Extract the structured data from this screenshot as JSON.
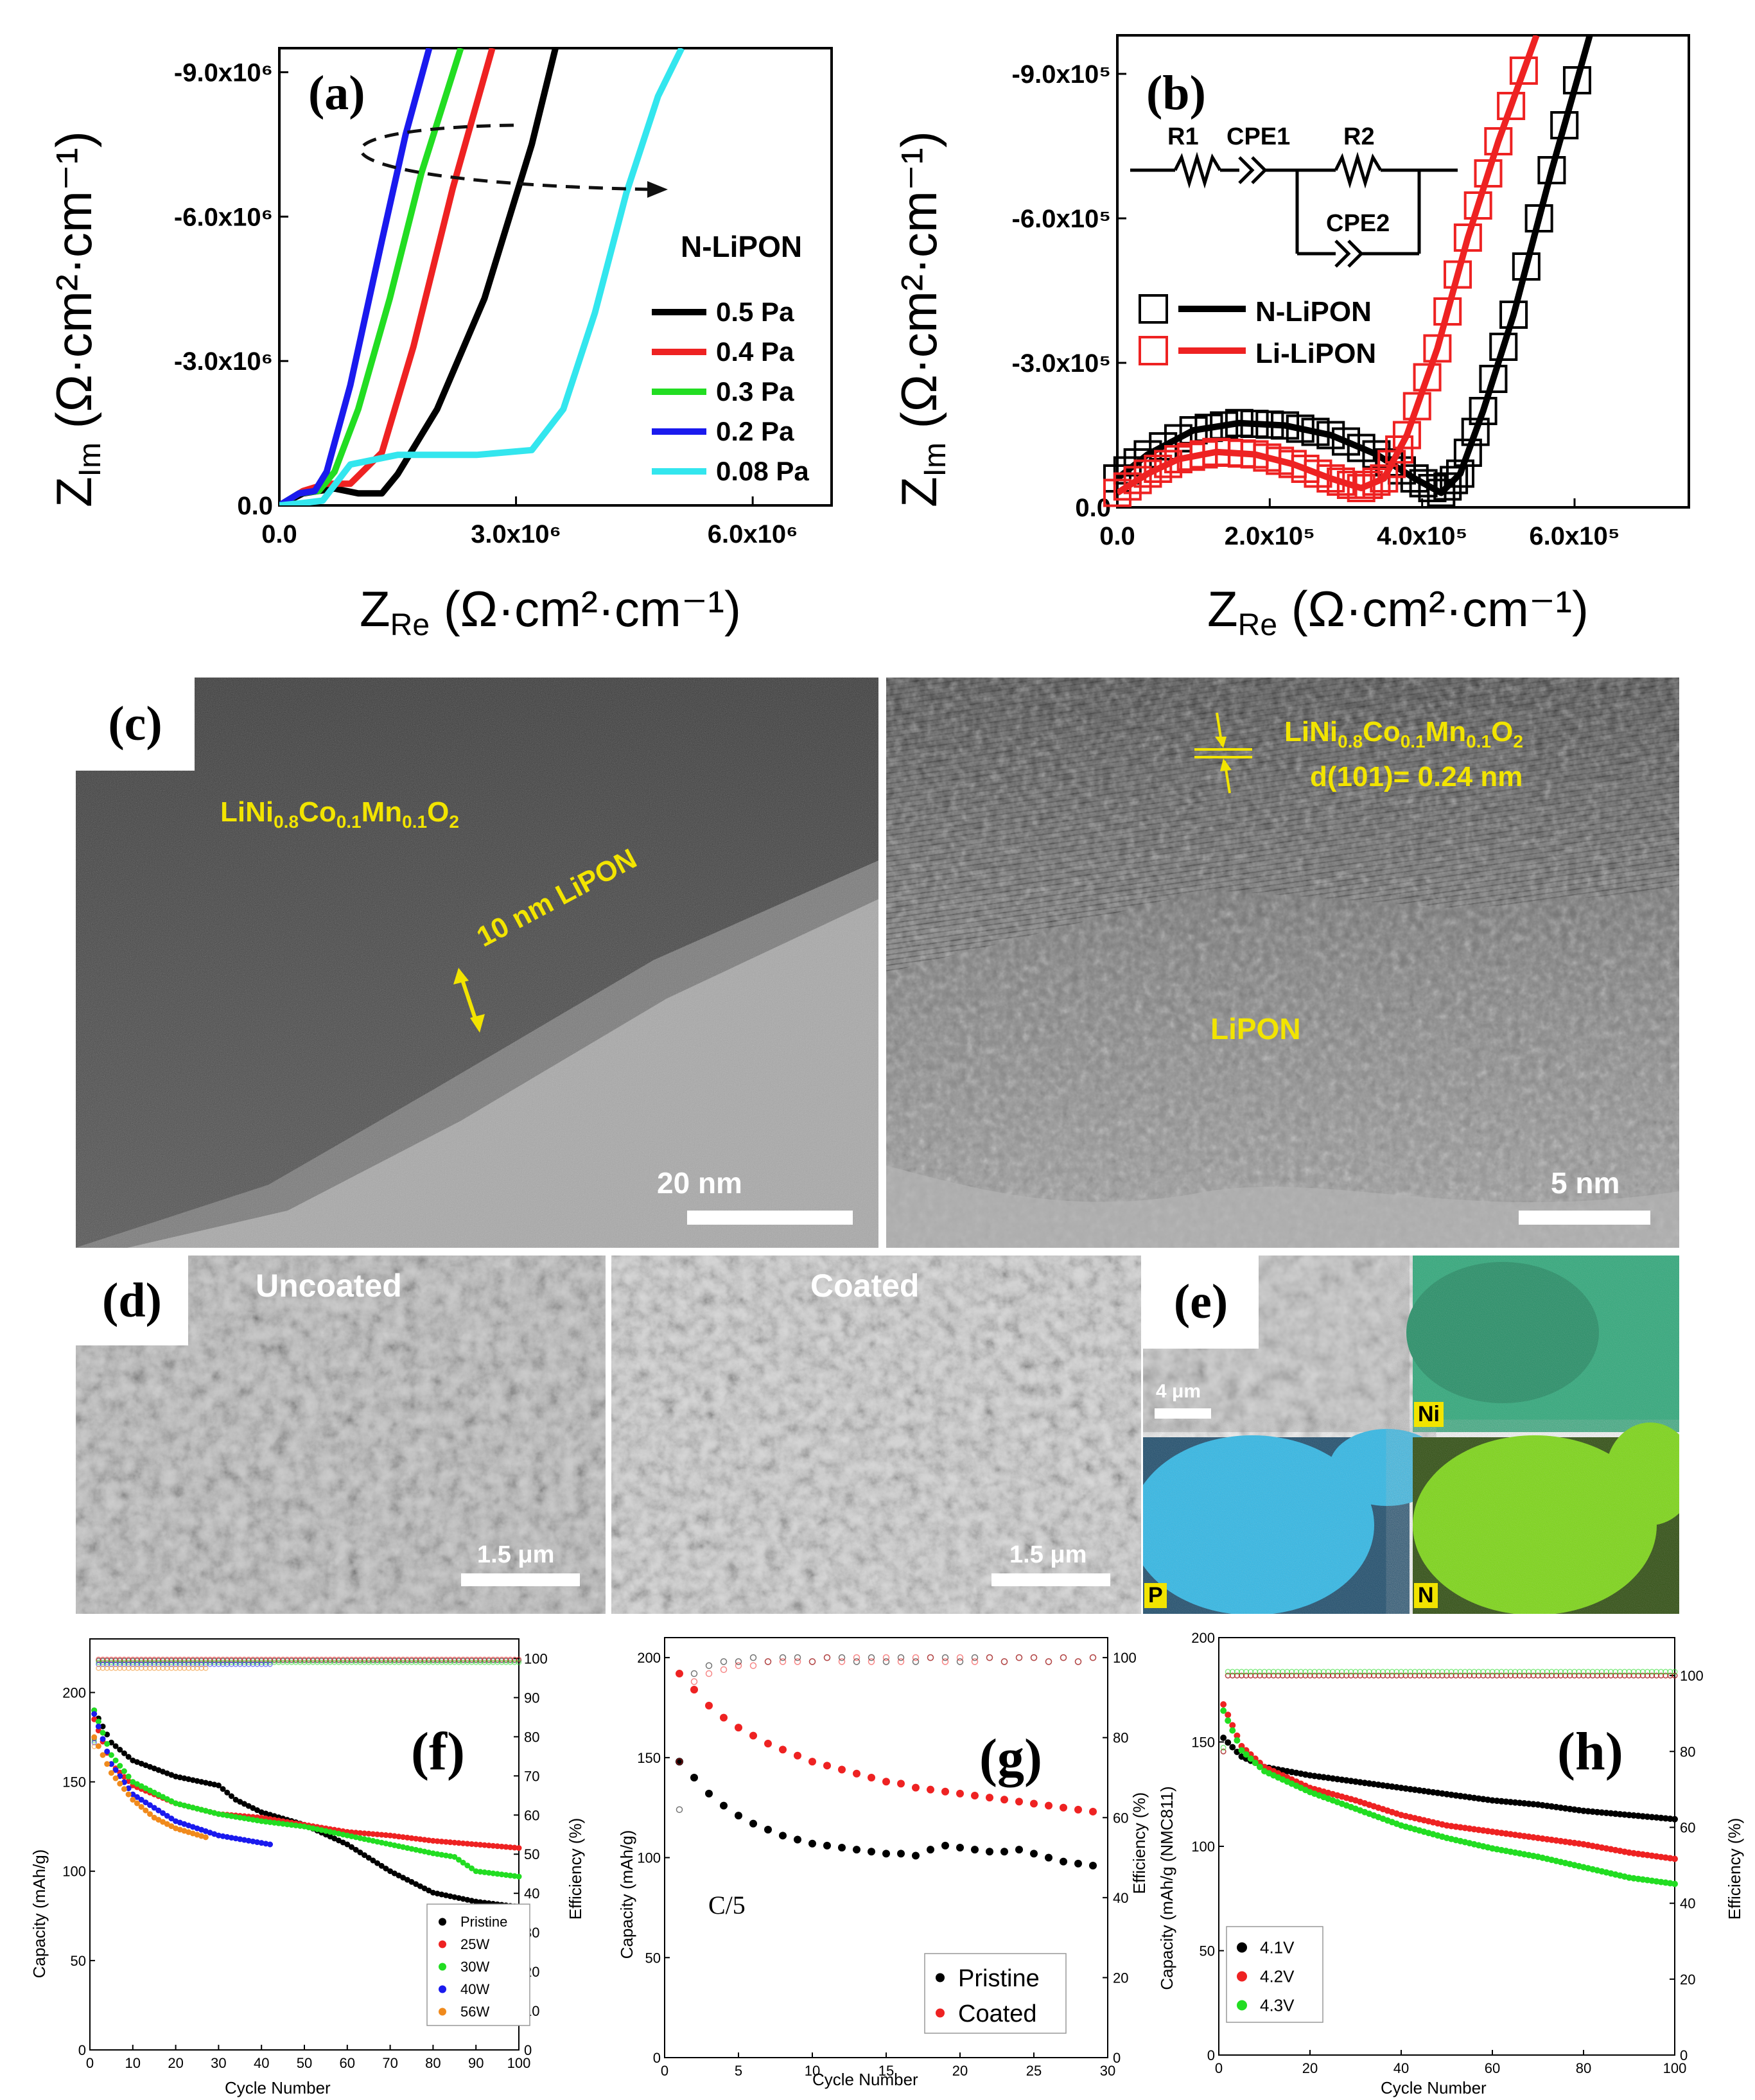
{
  "colors": {
    "black": "#000000",
    "red": "#ee2222",
    "green": "#22dd22",
    "blue": "#1a1aee",
    "cyan": "#33e6ee",
    "orange": "#f08a1c",
    "yellow": "#f2e400",
    "ni_map": "#2aa878",
    "p_map": "#2bb8e8",
    "n_map": "#7ad80e"
  },
  "panel_a": {
    "label": "(a)",
    "legend_title": "N-LiPON",
    "xlabel": "Z",
    "xlabel_sub": "Re",
    "unit": "(Ω·cm²·cm⁻¹)",
    "ylabel": "Z",
    "ylabel_sub": "Im",
    "chart_data": {
      "type": "line",
      "title": "",
      "xlim": [
        0,
        7000000
      ],
      "ylim": [
        0,
        9500000
      ],
      "x_ticks": [
        0,
        3000000,
        6000000
      ],
      "x_tick_labels": [
        "0.0",
        "3.0x10⁶",
        "6.0x10⁶"
      ],
      "y_ticks": [
        0,
        3000000,
        6000000,
        9000000
      ],
      "y_tick_labels": [
        "0.0",
        "-3.0x10⁶",
        "-6.0x10⁶",
        "-9.0x10⁶"
      ],
      "series": [
        {
          "name": "0.5 Pa",
          "color": "#000000",
          "x": [
            0,
            300000,
            700000,
            1000000,
            1300000,
            1500000,
            2000000,
            2600000,
            3200000,
            3500000
          ],
          "y": [
            0,
            250000,
            350000,
            250000,
            250000,
            650000,
            2000000,
            4300000,
            7500000,
            9500000
          ]
        },
        {
          "name": "0.4 Pa",
          "color": "#ee2222",
          "x": [
            0,
            300000,
            600000,
            900000,
            1300000,
            1700000,
            2200000,
            2700000
          ],
          "y": [
            0,
            300000,
            450000,
            450000,
            1100000,
            3300000,
            6600000,
            9500000
          ]
        },
        {
          "name": "0.3 Pa",
          "color": "#22dd22",
          "x": [
            0,
            250000,
            500000,
            700000,
            1000000,
            1400000,
            1800000,
            2300000
          ],
          "y": [
            0,
            250000,
            300000,
            700000,
            2000000,
            4300000,
            6900000,
            9500000
          ]
        },
        {
          "name": "0.2 Pa",
          "color": "#1a1aee",
          "x": [
            0,
            250000,
            450000,
            600000,
            900000,
            1300000,
            1600000,
            1900000
          ],
          "y": [
            0,
            250000,
            300000,
            700000,
            2500000,
            5500000,
            7700000,
            9500000
          ]
        },
        {
          "name": "0.08 Pa",
          "color": "#33e6ee",
          "x": [
            0,
            300000,
            550000,
            900000,
            1500000,
            2500000,
            3200000,
            3600000,
            4000000,
            4400000,
            4800000,
            5100000
          ],
          "y": [
            0,
            50000,
            100000,
            850000,
            1050000,
            1050000,
            1150000,
            2000000,
            4000000,
            6500000,
            8500000,
            9500000
          ]
        }
      ]
    }
  },
  "panel_b": {
    "label": "(b)",
    "circuit": {
      "r1": "R1",
      "cpe1": "CPE1",
      "r2": "R2",
      "cpe2": "CPE2"
    },
    "xlabel": "Z",
    "xlabel_sub": "Re",
    "unit": "(Ω·cm²·cm⁻¹)",
    "ylabel": "Z",
    "ylabel_sub": "Im",
    "chart_data": {
      "type": "scatter",
      "title": "",
      "xlim": [
        0,
        750000
      ],
      "ylim": [
        0,
        980000
      ],
      "x_ticks": [
        0,
        200000,
        400000,
        600000
      ],
      "x_tick_labels": [
        "0.0",
        "2.0x10⁵",
        "4.0x10⁵",
        "6.0x10⁵"
      ],
      "y_ticks": [
        0,
        300000,
        600000,
        900000
      ],
      "y_tick_labels": [
        "0.0",
        "-3.0x10⁵",
        "-6.0x10⁵",
        "-9.0x10⁵"
      ],
      "series": [
        {
          "name": "N-LiPON",
          "color": "#000000",
          "marker": "open-square",
          "fit_x": [
            0,
            40000,
            100000,
            160000,
            220000,
            280000,
            340000,
            390000,
            425000,
            450000,
            480000,
            520000,
            570000,
            620000
          ],
          "fit_y": [
            60000,
            110000,
            160000,
            175000,
            170000,
            150000,
            110000,
            60000,
            30000,
            70000,
            200000,
            400000,
            700000,
            980000
          ]
        },
        {
          "name": "Li-LiPON",
          "color": "#ee2222",
          "marker": "open-square",
          "fit_x": [
            0,
            40000,
            80000,
            130000,
            180000,
            230000,
            280000,
            320000,
            350000,
            380000,
            420000,
            460000,
            500000,
            550000
          ],
          "fit_y": [
            30000,
            70000,
            100000,
            115000,
            110000,
            90000,
            60000,
            40000,
            60000,
            150000,
            330000,
            560000,
            760000,
            980000
          ]
        }
      ]
    }
  },
  "panel_c": {
    "label": "(c)",
    "left": {
      "material_base": "LiNi",
      "sub1": "0.8",
      "mid1": "Co",
      "sub2": "0.1",
      "mid2": "Mn",
      "sub3": "0.1",
      "mid3": "O",
      "sub4": "2",
      "coating_label": "10 nm LiPON",
      "scale": "20 nm"
    },
    "right": {
      "material_base": "LiNi",
      "sub1": "0.8",
      "mid1": "Co",
      "sub2": "0.1",
      "mid2": "Mn",
      "sub3": "0.1",
      "mid3": "O",
      "sub4": "2",
      "d_spacing": "d(101)= 0.24 nm",
      "lipon_label": "LiPON",
      "scale": "5 nm"
    }
  },
  "panel_d": {
    "label": "(d)",
    "uncoated": "Uncoated",
    "coated": "Coated",
    "scale": "1.5 μm"
  },
  "panel_e": {
    "label": "(e)",
    "scale": "4 μm",
    "ni": "Ni",
    "p": "P",
    "n": "N"
  },
  "panel_f": {
    "label": "(f)",
    "xlabel": "Cycle Number",
    "ylabel": "Capacity (mAh/g)",
    "y2label": "Efficiency (%)",
    "chart_data": {
      "type": "scatter",
      "xlim": [
        0,
        100
      ],
      "ylim": [
        0,
        230
      ],
      "y2lim": [
        0,
        105
      ],
      "x_ticks": [
        0,
        10,
        20,
        30,
        40,
        50,
        60,
        70,
        80,
        90,
        100
      ],
      "y_ticks": [
        0,
        50,
        100,
        150,
        200
      ],
      "y2_ticks": [
        0,
        10,
        20,
        30,
        40,
        50,
        60,
        70,
        80,
        90,
        100
      ],
      "series": [
        {
          "name": "Pristine",
          "color": "#000000",
          "x": [
            1,
            5,
            10,
            20,
            30,
            34,
            40,
            50,
            60,
            70,
            80,
            90,
            100
          ],
          "y": [
            190,
            172,
            162,
            153,
            148,
            140,
            133,
            126,
            115,
            100,
            88,
            83,
            80
          ],
          "eff": 99.5
        },
        {
          "name": "25W",
          "color": "#ee2222",
          "x": [
            1,
            5,
            10,
            20,
            30,
            40,
            50,
            60,
            70,
            80,
            90,
            100
          ],
          "y": [
            185,
            160,
            148,
            138,
            132,
            130,
            126,
            122,
            120,
            117,
            115,
            113
          ],
          "eff": 99.8
        },
        {
          "name": "30W",
          "color": "#22dd22",
          "x": [
            1,
            5,
            10,
            20,
            30,
            40,
            50,
            60,
            70,
            80,
            85,
            90,
            100
          ],
          "y": [
            190,
            165,
            150,
            138,
            132,
            128,
            125,
            120,
            115,
            110,
            108,
            100,
            97
          ],
          "eff": 99.0
        },
        {
          "name": "40W",
          "color": "#1a1aee",
          "x": [
            1,
            5,
            10,
            20,
            30,
            42
          ],
          "y": [
            188,
            160,
            143,
            128,
            120,
            115
          ],
          "eff": 98.5
        },
        {
          "name": "56W",
          "color": "#f08a1c",
          "x": [
            1,
            5,
            10,
            15,
            20,
            27
          ],
          "y": [
            175,
            155,
            140,
            130,
            124,
            119
          ],
          "eff": 97.5
        }
      ]
    }
  },
  "panel_g": {
    "label": "(g)",
    "annotation": "C/5",
    "xlabel": "Cycle Number",
    "ylabel": "Capacity (mAh/g)",
    "y2label": "Efficiency (%)",
    "chart_data": {
      "type": "scatter",
      "xlim": [
        0,
        30
      ],
      "ylim": [
        0,
        210
      ],
      "y2lim": [
        0,
        105
      ],
      "x_ticks": [
        0,
        5,
        10,
        15,
        20,
        25,
        30
      ],
      "y_ticks": [
        0,
        50,
        100,
        150,
        200
      ],
      "y2_ticks": [
        0,
        20,
        40,
        60,
        80,
        100
      ],
      "series": [
        {
          "name": "Pristine",
          "color": "#000000",
          "x": [
            1,
            2,
            3,
            4,
            5,
            6,
            7,
            8,
            9,
            10,
            11,
            12,
            13,
            14,
            15,
            16,
            17,
            18,
            19,
            20,
            21,
            22,
            23,
            24,
            25,
            26,
            27,
            28,
            29
          ],
          "y": [
            148,
            140,
            132,
            126,
            121,
            117,
            114,
            111,
            109,
            107,
            106,
            105,
            104,
            103,
            102,
            102,
            101,
            104,
            106,
            105,
            104,
            103,
            103,
            104,
            102,
            100,
            98,
            97,
            96
          ],
          "eff": [
            62,
            96,
            98,
            99,
            99,
            100,
            99,
            100,
            100,
            99,
            100,
            100,
            99,
            100,
            99,
            100,
            99,
            100,
            100,
            99,
            100,
            100,
            99,
            100,
            100,
            99,
            100,
            99,
            100
          ]
        },
        {
          "name": "Coated",
          "color": "#ee2222",
          "x": [
            1,
            2,
            3,
            4,
            5,
            6,
            7,
            8,
            9,
            10,
            11,
            12,
            13,
            14,
            15,
            16,
            17,
            18,
            19,
            20,
            21,
            22,
            23,
            24,
            25,
            26,
            27,
            28,
            29
          ],
          "y": [
            192,
            184,
            176,
            170,
            165,
            161,
            157,
            154,
            151,
            148,
            146,
            144,
            142,
            140,
            138,
            137,
            135,
            134,
            133,
            132,
            131,
            130,
            129,
            128,
            127,
            126,
            125,
            124,
            123
          ],
          "eff": [
            74,
            94,
            96,
            97,
            98,
            98,
            99,
            99,
            99,
            99,
            100,
            99,
            100,
            99,
            100,
            99,
            100,
            100,
            99,
            100,
            99,
            100,
            99,
            100,
            100,
            99,
            100,
            99,
            100
          ]
        }
      ]
    }
  },
  "panel_h": {
    "label": "(h)",
    "xlabel": "Cycle Number",
    "ylabel": "Capacity (mAh/g (NMC811)",
    "y2label": "Efficiency (%)",
    "chart_data": {
      "type": "scatter",
      "xlim": [
        0,
        100
      ],
      "ylim": [
        0,
        200
      ],
      "y2lim": [
        0,
        110
      ],
      "x_ticks": [
        0,
        20,
        40,
        60,
        80,
        100
      ],
      "y_ticks": [
        0,
        50,
        100,
        150,
        200
      ],
      "y2_ticks": [
        0,
        20,
        40,
        60,
        80,
        100
      ],
      "series": [
        {
          "name": "4.1V",
          "color": "#000000",
          "x": [
            1,
            5,
            10,
            20,
            30,
            40,
            50,
            60,
            70,
            80,
            90,
            100
          ],
          "y": [
            152,
            143,
            138,
            134,
            131,
            128,
            125,
            122,
            120,
            117,
            115,
            113
          ],
          "eff": 100
        },
        {
          "name": "4.2V",
          "color": "#ee2222",
          "x": [
            1,
            5,
            10,
            20,
            30,
            40,
            50,
            60,
            70,
            80,
            90,
            100
          ],
          "y": [
            168,
            148,
            138,
            128,
            122,
            115,
            110,
            107,
            104,
            101,
            97,
            94
          ],
          "eff": 100
        },
        {
          "name": "4.3V",
          "color": "#22dd22",
          "x": [
            1,
            5,
            10,
            20,
            30,
            40,
            50,
            60,
            70,
            80,
            90,
            100
          ],
          "y": [
            165,
            146,
            136,
            126,
            118,
            110,
            104,
            99,
            95,
            90,
            85,
            82
          ],
          "eff": 101
        }
      ]
    }
  }
}
